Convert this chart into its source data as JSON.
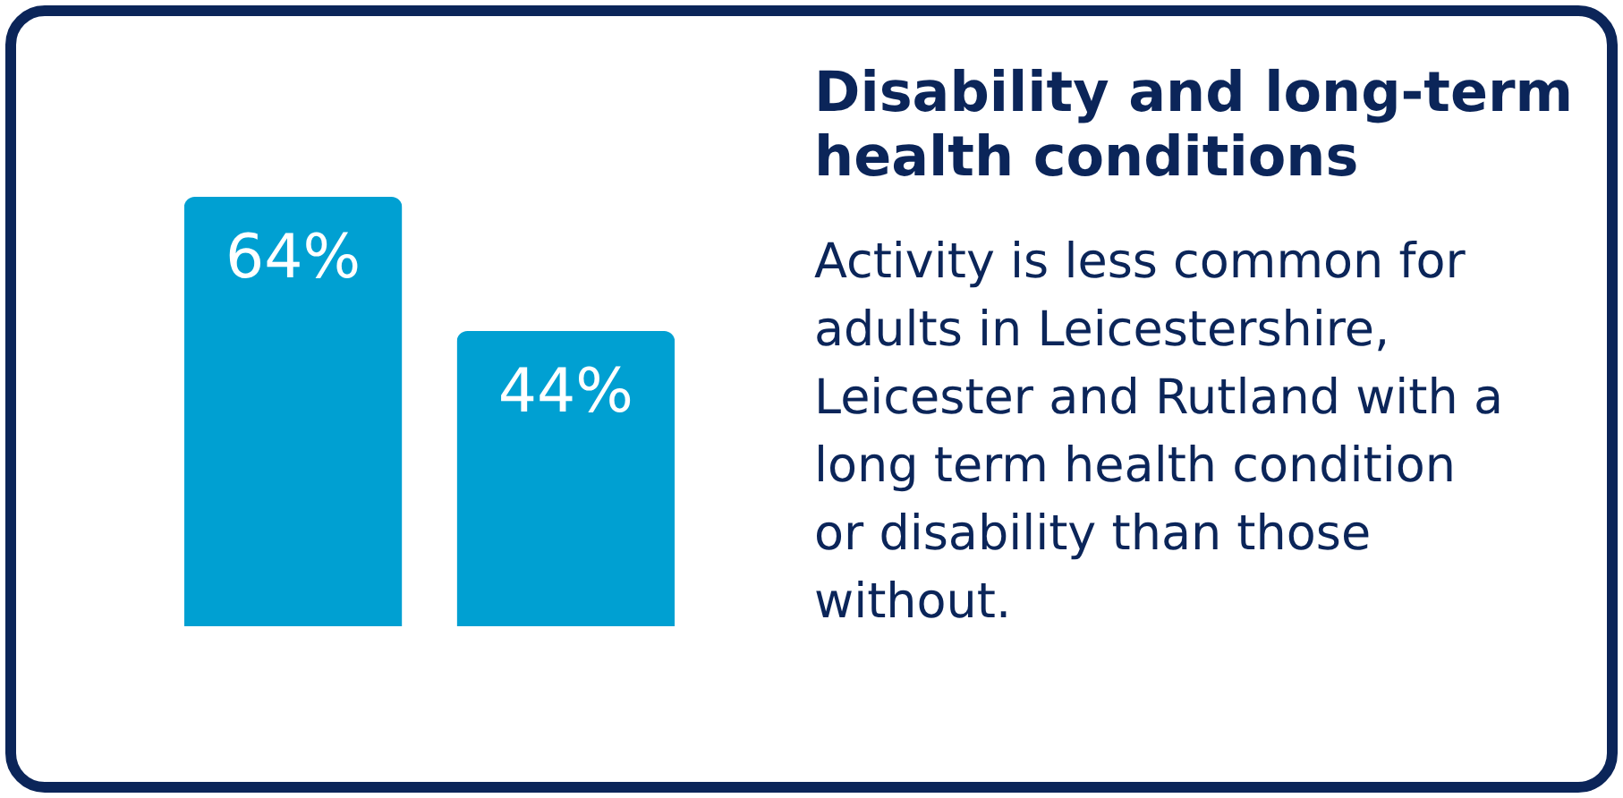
{
  "chart_data": {
    "type": "bar",
    "title": "Disability and long-term health conditions",
    "subtitle": "Activity is less common for adults in Leicestershire, Leicester and Rutland with a long term health condition or disability than those without.",
    "categories": [
      null,
      null
    ],
    "values": [
      64,
      44
    ],
    "colors": [
      "#00a0d2",
      "#00a0d2"
    ],
    "value_labels": [
      "64%",
      "44%"
    ]
  }
}
